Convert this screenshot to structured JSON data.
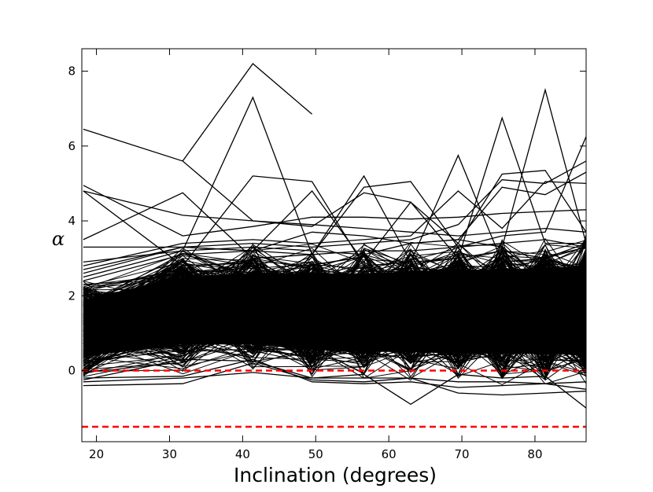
{
  "chart_data": {
    "type": "line",
    "title": "",
    "xlabel": "Inclination (degrees)",
    "ylabel": "α",
    "xlim": [
      18,
      87
    ],
    "ylim": [
      -1.9,
      8.6
    ],
    "xticks": [
      "20",
      "30",
      "40",
      "50",
      "60",
      "70",
      "80"
    ],
    "yticks": [
      "0",
      "2",
      "4",
      "6",
      "8"
    ],
    "x": [
      18.2,
      31.8,
      41.4,
      49.5,
      56.6,
      63.0,
      69.5,
      75.5,
      81.4,
      87.0
    ],
    "grid": false,
    "legend": "none",
    "reference_lines": [
      {
        "y": 0,
        "color": "#ff0000",
        "style": "dashed"
      },
      {
        "y": -1.5,
        "color": "#ff0000",
        "style": "dashed"
      }
    ],
    "highlighted_series": [
      {
        "values": [
          null,
          5.6,
          8.2,
          6.85,
          null,
          null,
          null,
          null,
          null,
          null
        ]
      },
      {
        "values": [
          6.45,
          5.6,
          4.0,
          3.9,
          3.8,
          3.7,
          3.6,
          3.7,
          3.8,
          3.7
        ]
      },
      {
        "values": [
          2.5,
          3.2,
          7.3,
          3.1,
          3.2,
          3.2,
          3.3,
          3.4,
          3.5,
          3.3
        ]
      },
      {
        "values": [
          4.95,
          3.6,
          3.85,
          4.1,
          4.1,
          4.05,
          4.1,
          4.2,
          4.25,
          4.3
        ]
      },
      {
        "values": [
          4.8,
          4.15,
          4.0,
          3.85,
          4.75,
          4.5,
          3.4,
          5.25,
          5.35,
          3.7
        ]
      },
      {
        "values": [
          4.8,
          2.8,
          5.2,
          5.05,
          2.8,
          2.9,
          3.0,
          3.2,
          3.0,
          3.4
        ]
      },
      {
        "values": [
          3.5,
          4.75,
          3.0,
          3.1,
          5.2,
          2.9,
          5.75,
          2.9,
          3.0,
          3.3
        ]
      },
      {
        "values": [
          2.7,
          3.3,
          3.2,
          4.8,
          2.9,
          4.5,
          3.0,
          6.75,
          3.4,
          3.4
        ]
      },
      {
        "values": [
          2.9,
          3.2,
          3.3,
          3.2,
          3.1,
          3.4,
          3.5,
          3.3,
          7.5,
          3.4
        ]
      },
      {
        "values": [
          2.4,
          3.1,
          3.2,
          3.1,
          4.9,
          5.05,
          3.3,
          3.6,
          3.7,
          6.25
        ]
      },
      {
        "values": [
          2.6,
          3.3,
          3.4,
          3.3,
          3.4,
          3.5,
          3.9,
          5.1,
          5.0,
          5.6
        ]
      },
      {
        "values": [
          2.8,
          3.4,
          3.5,
          3.4,
          3.5,
          3.6,
          4.8,
          3.8,
          5.05,
          5.0
        ]
      },
      {
        "values": [
          3.3,
          3.3,
          3.2,
          3.7,
          3.6,
          3.4,
          3.5,
          4.9,
          4.7,
          5.3
        ]
      },
      {
        "values": [
          -0.25,
          0.3,
          0.25,
          -0.2,
          -0.1,
          -0.9,
          -0.1,
          -0.2,
          -0.15,
          -1.0
        ]
      },
      {
        "values": [
          -0.4,
          -0.35,
          0.2,
          -0.25,
          -0.3,
          -0.2,
          -0.6,
          -0.65,
          -0.6,
          -0.55
        ]
      },
      {
        "values": [
          -0.2,
          -0.15,
          0.3,
          -0.3,
          -0.35,
          -0.3,
          -0.45,
          -0.4,
          -0.35,
          -0.5
        ]
      },
      {
        "values": [
          -0.3,
          -0.2,
          -0.05,
          -0.2,
          -0.2,
          -0.2,
          -0.3,
          -0.3,
          -0.35,
          -0.3
        ]
      }
    ],
    "band": {
      "note": "dense overlapping black series filling the region",
      "lower_min": [
        -0.3,
        -0.2,
        0.0,
        -0.25,
        -0.3,
        -0.3,
        -0.4,
        -0.45,
        -0.45,
        -0.5
      ],
      "lower_max": [
        0.3,
        0.6,
        0.6,
        0.45,
        0.4,
        0.4,
        0.35,
        0.35,
        0.35,
        0.3
      ],
      "upper_min": [
        2.0,
        2.6,
        2.7,
        2.7,
        2.7,
        2.75,
        2.8,
        2.8,
        2.85,
        2.9
      ],
      "upper_max": [
        2.5,
        3.4,
        3.45,
        3.4,
        3.45,
        3.5,
        3.55,
        3.6,
        3.65,
        3.7
      ]
    },
    "series_count_band": 300,
    "line_color": "#000000"
  }
}
